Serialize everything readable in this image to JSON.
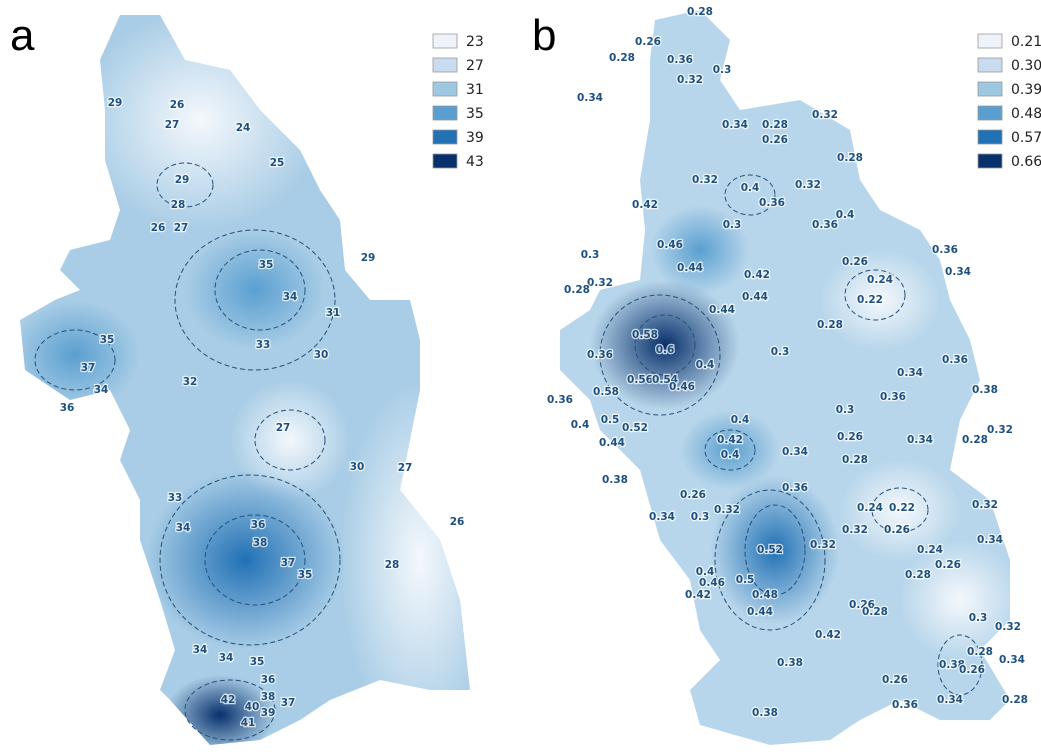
{
  "panels": [
    {
      "label": "a",
      "legend": [
        {
          "label": "23",
          "color": "#eef3fa"
        },
        {
          "label": "27",
          "color": "#c9dcef"
        },
        {
          "label": "31",
          "color": "#9ec8e2"
        },
        {
          "label": "35",
          "color": "#5a9fd0"
        },
        {
          "label": "39",
          "color": "#2171b5"
        },
        {
          "label": "43",
          "color": "#08306b"
        }
      ],
      "contour_labels": [
        "29",
        "26",
        "27",
        "24",
        "25",
        "29",
        "28",
        "26",
        "27",
        "29",
        "35",
        "34",
        "31",
        "33",
        "35",
        "37",
        "30",
        "32",
        "34",
        "36",
        "27",
        "30",
        "27",
        "33",
        "34",
        "36",
        "38",
        "37",
        "35",
        "28",
        "26",
        "34",
        "34",
        "35",
        "36",
        "38",
        "37",
        "42",
        "40",
        "39",
        "41"
      ]
    },
    {
      "label": "b",
      "legend": [
        {
          "label": "0.21",
          "color": "#eef3fa"
        },
        {
          "label": "0.30",
          "color": "#c9dcef"
        },
        {
          "label": "0.39",
          "color": "#9ec8e2"
        },
        {
          "label": "0.48",
          "color": "#5a9fd0"
        },
        {
          "label": "0.57",
          "color": "#2171b5"
        },
        {
          "label": "0.66",
          "color": "#08306b"
        }
      ],
      "contour_labels": [
        "0.28",
        "0.26",
        "0.28",
        "0.36",
        "0.32",
        "0.3",
        "0.34",
        "0.34",
        "0.28",
        "0.32",
        "0.26",
        "0.28",
        "0.32",
        "0.32",
        "0.4",
        "0.36",
        "0.42",
        "0.3",
        "0.4",
        "0.36",
        "0.36",
        "0.46",
        "0.44",
        "0.26",
        "0.34",
        "0.3",
        "0.32",
        "0.28",
        "0.42",
        "0.44",
        "0.24",
        "0.22",
        "0.44",
        "0.28",
        "0.58",
        "0.6",
        "0.36",
        "0.3",
        "0.4",
        "0.36",
        "0.34",
        "0.56",
        "0.54",
        "0.38",
        "0.36",
        "0.36",
        "0.58",
        "0.46",
        "0.4",
        "0.3",
        "0.4",
        "0.5",
        "0.52",
        "0.26",
        "0.34",
        "0.28",
        "0.32",
        "0.42",
        "0.4",
        "0.34",
        "0.44",
        "0.28",
        "0.38",
        "0.26",
        "0.36",
        "0.32",
        "0.24",
        "0.22",
        "0.34",
        "0.3",
        "0.32",
        "0.32",
        "0.26",
        "0.34",
        "0.52",
        "0.32",
        "0.24",
        "0.26",
        "0.28",
        "0.4",
        "0.46",
        "0.5",
        "0.48",
        "0.42",
        "0.44",
        "0.26",
        "0.28",
        "0.3",
        "0.32",
        "0.42",
        "0.28",
        "0.38",
        "0.26",
        "0.34",
        "0.38",
        "0.26",
        "0.34",
        "0.28",
        "0.36",
        "0.38"
      ]
    }
  ]
}
